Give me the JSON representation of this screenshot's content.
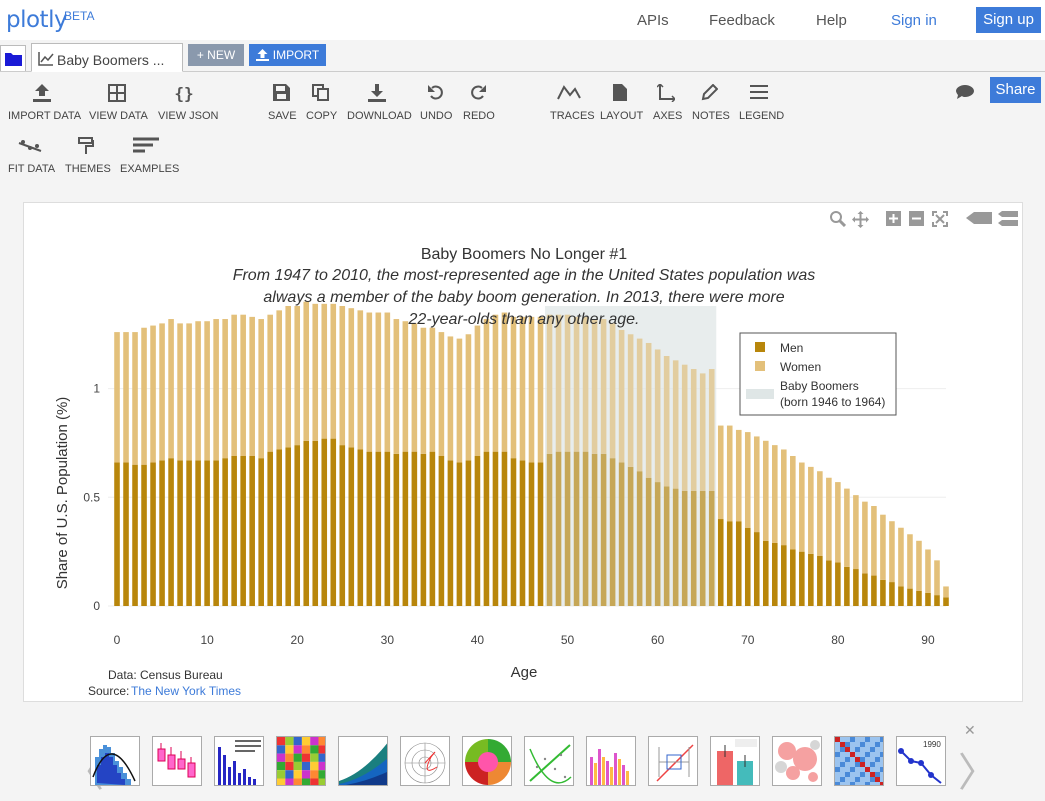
{
  "nav": {
    "logo": "plotly",
    "beta": "BETA",
    "links": [
      "APIs",
      "Feedback",
      "Help"
    ],
    "sign_in": "Sign in",
    "sign_up": "Sign up"
  },
  "tabs": {
    "active_tab": "Baby Boomers ...",
    "new_label": "+ NEW",
    "import_label": "IMPORT"
  },
  "toolbar": {
    "import_data": "IMPORT DATA",
    "view_data": "VIEW DATA",
    "view_json": "VIEW JSON",
    "save": "SAVE",
    "copy": "COPY",
    "download": "DOWNLOAD",
    "undo": "UNDO",
    "redo": "REDO",
    "traces": "TRACES",
    "layout": "LAYOUT",
    "axes": "AXES",
    "notes": "NOTES",
    "legend": "LEGEND",
    "fit_data": "FIT DATA",
    "themes": "THEMES",
    "examples": "EXAMPLES",
    "share": "Share"
  },
  "chart_data": {
    "type": "bar",
    "title": "Baby Boomers No Longer #1",
    "subtitle_lines": [
      "From 1947 to 2010, the  most-represented age in the United States  population was",
      "always a member of the baby boom generation. In  2013, there were more",
      "22-year-olds than any other age."
    ],
    "xlabel": "Age",
    "ylabel": "Share of U.S. Population (%)",
    "xlim": [
      -1,
      92
    ],
    "ylim": [
      0,
      1.38
    ],
    "x_ticks": [
      0,
      10,
      20,
      30,
      40,
      50,
      60,
      70,
      80,
      90
    ],
    "y_ticks": [
      0,
      0.5,
      1
    ],
    "y_tick_labels": [
      "0",
      "0.5",
      "1"
    ],
    "x": [
      0,
      1,
      2,
      3,
      4,
      5,
      6,
      7,
      8,
      9,
      10,
      11,
      12,
      13,
      14,
      15,
      16,
      17,
      18,
      19,
      20,
      21,
      22,
      23,
      24,
      25,
      26,
      27,
      28,
      29,
      30,
      31,
      32,
      33,
      34,
      35,
      36,
      37,
      38,
      39,
      40,
      41,
      42,
      43,
      44,
      45,
      46,
      47,
      48,
      49,
      50,
      51,
      52,
      53,
      54,
      55,
      56,
      57,
      58,
      59,
      60,
      61,
      62,
      63,
      64,
      65,
      66,
      67,
      68,
      69,
      70,
      71,
      72,
      73,
      74,
      75,
      76,
      77,
      78,
      79,
      80,
      81,
      82,
      83,
      84,
      85,
      86,
      87,
      88,
      89,
      90,
      91,
      92
    ],
    "series": [
      {
        "name": "Men",
        "color": "#b8860b",
        "values": [
          0.66,
          0.66,
          0.65,
          0.65,
          0.66,
          0.67,
          0.68,
          0.67,
          0.67,
          0.67,
          0.67,
          0.67,
          0.68,
          0.69,
          0.69,
          0.69,
          0.68,
          0.71,
          0.72,
          0.73,
          0.74,
          0.76,
          0.76,
          0.77,
          0.77,
          0.74,
          0.73,
          0.72,
          0.71,
          0.71,
          0.71,
          0.7,
          0.71,
          0.71,
          0.7,
          0.71,
          0.69,
          0.67,
          0.66,
          0.67,
          0.69,
          0.71,
          0.71,
          0.71,
          0.68,
          0.67,
          0.66,
          0.66,
          0.7,
          0.71,
          0.71,
          0.71,
          0.71,
          0.7,
          0.7,
          0.68,
          0.66,
          0.64,
          0.62,
          0.59,
          0.57,
          0.55,
          0.54,
          0.53,
          0.53,
          0.53,
          0.53,
          0.4,
          0.39,
          0.39,
          0.36,
          0.34,
          0.3,
          0.29,
          0.28,
          0.26,
          0.25,
          0.24,
          0.23,
          0.21,
          0.2,
          0.18,
          0.17,
          0.15,
          0.14,
          0.12,
          0.11,
          0.09,
          0.08,
          0.07,
          0.06,
          0.05,
          0.04
        ]
      },
      {
        "name": "Women",
        "color": "#e3c07a",
        "values": [
          0.6,
          0.6,
          0.61,
          0.63,
          0.63,
          0.63,
          0.64,
          0.63,
          0.63,
          0.64,
          0.64,
          0.65,
          0.64,
          0.65,
          0.65,
          0.64,
          0.64,
          0.63,
          0.64,
          0.65,
          0.64,
          0.64,
          0.63,
          0.62,
          0.62,
          0.64,
          0.64,
          0.64,
          0.64,
          0.64,
          0.64,
          0.62,
          0.6,
          0.59,
          0.58,
          0.57,
          0.57,
          0.57,
          0.57,
          0.58,
          0.6,
          0.61,
          0.63,
          0.64,
          0.65,
          0.66,
          0.67,
          0.67,
          0.64,
          0.63,
          0.63,
          0.62,
          0.62,
          0.62,
          0.62,
          0.62,
          0.61,
          0.61,
          0.61,
          0.62,
          0.61,
          0.6,
          0.59,
          0.58,
          0.56,
          0.54,
          0.56,
          0.43,
          0.44,
          0.42,
          0.44,
          0.44,
          0.46,
          0.45,
          0.44,
          0.43,
          0.41,
          0.4,
          0.39,
          0.38,
          0.37,
          0.36,
          0.34,
          0.33,
          0.32,
          0.3,
          0.28,
          0.27,
          0.25,
          0.23,
          0.2,
          0.16,
          0.05
        ]
      }
    ],
    "shaded_region": {
      "name": "Baby Boomers (born 1946 to 1964)",
      "x_start": 48,
      "x_end": 66
    },
    "legend": [
      "Men",
      "Women",
      "Baby Boomers",
      "(born 1946 to 1964)"
    ],
    "legend_position": "top-right",
    "annotations": [
      "Data: Census Bureau",
      "Source:",
      "The New York Times"
    ]
  }
}
